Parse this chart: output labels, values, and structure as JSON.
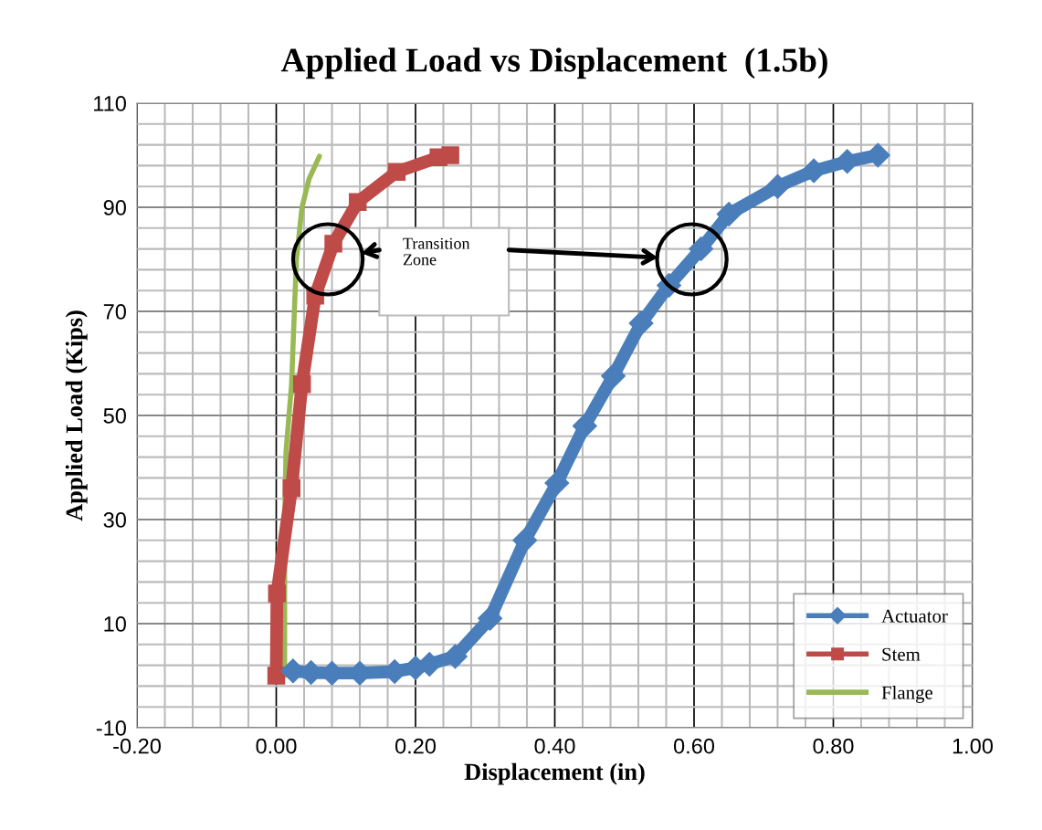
{
  "chart_data": {
    "type": "line",
    "title": "Applied Load vs Displacement  (1.5b)",
    "xlabel": "Displacement (in)",
    "ylabel": "Applied Load (Kips)",
    "series": [
      {
        "name": "Actuator",
        "color": "#4a7ebb",
        "marker": "diamond",
        "x": [
          0.024,
          0.05,
          0.08,
          0.12,
          0.17,
          0.2,
          0.22,
          0.257,
          0.307,
          0.357,
          0.403,
          0.443,
          0.484,
          0.524,
          0.564,
          0.61,
          0.65,
          0.72,
          0.772,
          0.82,
          0.864
        ],
        "values": [
          0.9,
          0.6,
          0.5,
          0.5,
          0.8,
          1.5,
          2.2,
          3.7,
          11,
          26,
          37,
          48,
          57.6,
          67.7,
          75,
          82,
          88.7,
          94,
          97,
          98.8,
          100
        ]
      },
      {
        "name": "Stem",
        "color": "#be4b48",
        "marker": "square",
        "x": [
          0.0,
          0.001,
          0.022,
          0.037,
          0.056,
          0.082,
          0.117,
          0.173,
          0.233,
          0.25
        ],
        "values": [
          0,
          15.8,
          36,
          56,
          73,
          83,
          91,
          96.8,
          99.6,
          100
        ]
      },
      {
        "name": "Flange",
        "color": "#98b954",
        "marker": "none",
        "x": [
          0.012,
          0.012,
          0.012,
          0.014,
          0.022,
          0.026,
          0.029,
          0.037,
          0.047,
          0.062
        ],
        "values": [
          0,
          16,
          29,
          43,
          56,
          70,
          80,
          90,
          95.4,
          99.8
        ]
      }
    ],
    "xlim": [
      -0.2,
      1.0
    ],
    "xticks": [
      {
        "value": -0.2,
        "label": "-0.20"
      },
      {
        "value": 0.0,
        "label": "0.00"
      },
      {
        "value": 0.2,
        "label": "0.20"
      },
      {
        "value": 0.4,
        "label": "0.40"
      },
      {
        "value": 0.6,
        "label": "0.60"
      },
      {
        "value": 0.8,
        "label": "0.80"
      },
      {
        "value": 1.0,
        "label": "1.00"
      }
    ],
    "ylim": [
      -10,
      110
    ],
    "yticks": [
      -10,
      10,
      30,
      50,
      70,
      90,
      110
    ],
    "annotations": [
      "Transition Zone"
    ],
    "grid": true,
    "legend": "bottom right",
    "line_style": "solid"
  }
}
